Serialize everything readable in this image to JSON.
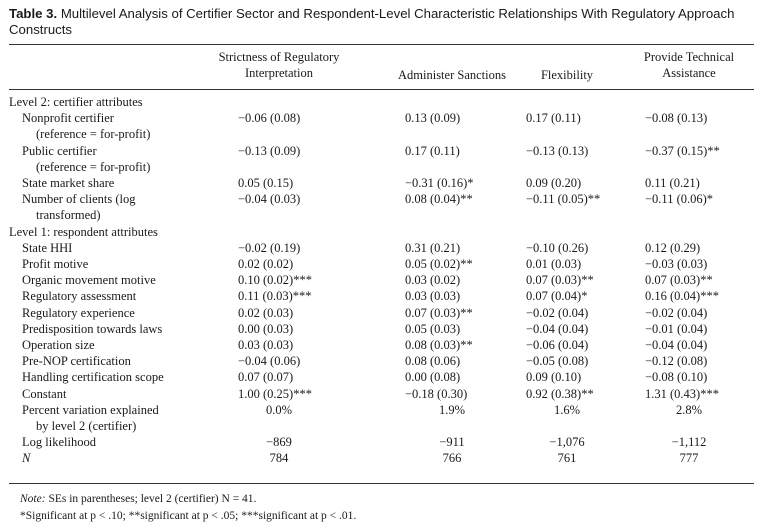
{
  "caption": {
    "number": "Table 3.",
    "title": "Multilevel Analysis of Certifier Sector and Respondent-Level Characteristic Relationships With Regulatory Approach Constructs"
  },
  "columns": [
    "Strictness of Regulatory Interpretation",
    "Administer Sanctions",
    "Flexibility",
    "Provide Technical Assistance"
  ],
  "rows": [
    {
      "type": "section",
      "label": "Level 2: certifier attributes",
      "values": []
    },
    {
      "type": "data",
      "label": "Nonprofit certifier",
      "label2": "(reference = for-profit)",
      "values": [
        "−0.06 (0.08)",
        "0.13 (0.09)",
        "0.17 (0.11)",
        "−0.08 (0.13)"
      ]
    },
    {
      "type": "data",
      "label": "Public certifier",
      "label2": "(reference = for-profit)",
      "values": [
        "−0.13 (0.09)",
        "0.17 (0.11)",
        "−0.13 (0.13)",
        "−0.37 (0.15)**"
      ]
    },
    {
      "type": "data",
      "label": "State market share",
      "values": [
        "0.05 (0.15)",
        "−0.31 (0.16)*",
        "0.09 (0.20)",
        "0.11 (0.21)"
      ]
    },
    {
      "type": "data",
      "label": "Number of clients (log",
      "label2": "transformed)",
      "values": [
        "−0.04 (0.03)",
        "0.08 (0.04)**",
        "−0.11 (0.05)**",
        "−0.11 (0.06)*"
      ]
    },
    {
      "type": "section",
      "label": "Level 1: respondent attributes",
      "values": []
    },
    {
      "type": "data",
      "label": "State HHI",
      "values": [
        "−0.02 (0.19)",
        "0.31 (0.21)",
        "−0.10 (0.26)",
        "0.12 (0.29)"
      ]
    },
    {
      "type": "data",
      "label": "Profit motive",
      "values": [
        "0.02 (0.02)",
        "0.05 (0.02)**",
        "0.01 (0.03)",
        "−0.03 (0.03)"
      ]
    },
    {
      "type": "data",
      "label": "Organic movement motive",
      "values": [
        "0.10 (0.02)***",
        "0.03 (0.02)",
        "0.07 (0.03)**",
        "0.07 (0.03)**"
      ]
    },
    {
      "type": "data",
      "label": "Regulatory assessment",
      "values": [
        "0.11 (0.03)***",
        "0.03 (0.03)",
        "0.07 (0.04)*",
        "0.16 (0.04)***"
      ]
    },
    {
      "type": "data",
      "label": "Regulatory experience",
      "values": [
        "0.02 (0.03)",
        "0.07 (0.03)**",
        "−0.02 (0.04)",
        "−0.02 (0.04)"
      ]
    },
    {
      "type": "data",
      "label": "Predisposition towards laws",
      "values": [
        "0.00 (0.03)",
        "0.05 (0.03)",
        "−0.04 (0.04)",
        "−0.01 (0.04)"
      ]
    },
    {
      "type": "data",
      "label": "Operation size",
      "values": [
        "0.03 (0.03)",
        "0.08 (0.03)**",
        "−0.06 (0.04)",
        "−0.04 (0.04)"
      ]
    },
    {
      "type": "data",
      "label": "Pre-NOP certification",
      "values": [
        "−0.04 (0.06)",
        "0.08 (0.06)",
        "−0.05 (0.08)",
        "−0.12 (0.08)"
      ]
    },
    {
      "type": "data",
      "label": "Handling certification scope",
      "values": [
        "0.07 (0.07)",
        "0.00 (0.08)",
        "0.09 (0.10)",
        "−0.08 (0.10)"
      ]
    },
    {
      "type": "data",
      "label": "Constant",
      "values": [
        "1.00 (0.25)***",
        "−0.18 (0.30)",
        "0.92 (0.38)**",
        "1.31 (0.43)***"
      ]
    },
    {
      "type": "summary",
      "label": "Percent variation explained",
      "label2": "by level 2 (certifier)",
      "values": [
        "0.0%",
        "1.9%",
        "1.6%",
        "2.8%"
      ]
    },
    {
      "type": "summary",
      "label": "Log likelihood",
      "values": [
        "−869",
        "−911",
        "−1,076",
        "−1,112"
      ]
    },
    {
      "type": "summary",
      "label": "N",
      "values": [
        "784",
        "766",
        "761",
        "777"
      ]
    }
  ],
  "notes": {
    "note_label": "Note:",
    "note_text": "SEs in parentheses; level 2 (certifier) N = 41.",
    "significance": "*Significant at p < .10; **significant at p < .05; ***significant at p < .01."
  }
}
